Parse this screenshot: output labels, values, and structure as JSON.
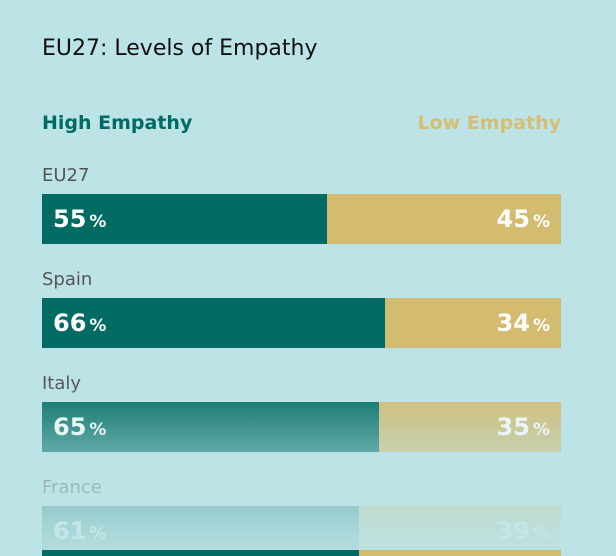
{
  "chart_data": {
    "type": "bar",
    "title": "EU27: Levels of Empathy",
    "stacked": true,
    "orientation": "horizontal",
    "categories": [
      "EU27",
      "Spain",
      "Italy",
      "France"
    ],
    "series": [
      {
        "name": "High Empathy",
        "values": [
          55,
          66,
          65,
          61
        ],
        "color": "#006b63"
      },
      {
        "name": "Low Empathy",
        "values": [
          45,
          34,
          35,
          39
        ],
        "color": "#d3bb6f"
      }
    ],
    "unit": "%",
    "xlim": [
      0,
      100
    ],
    "legend_placement": "top"
  }
}
